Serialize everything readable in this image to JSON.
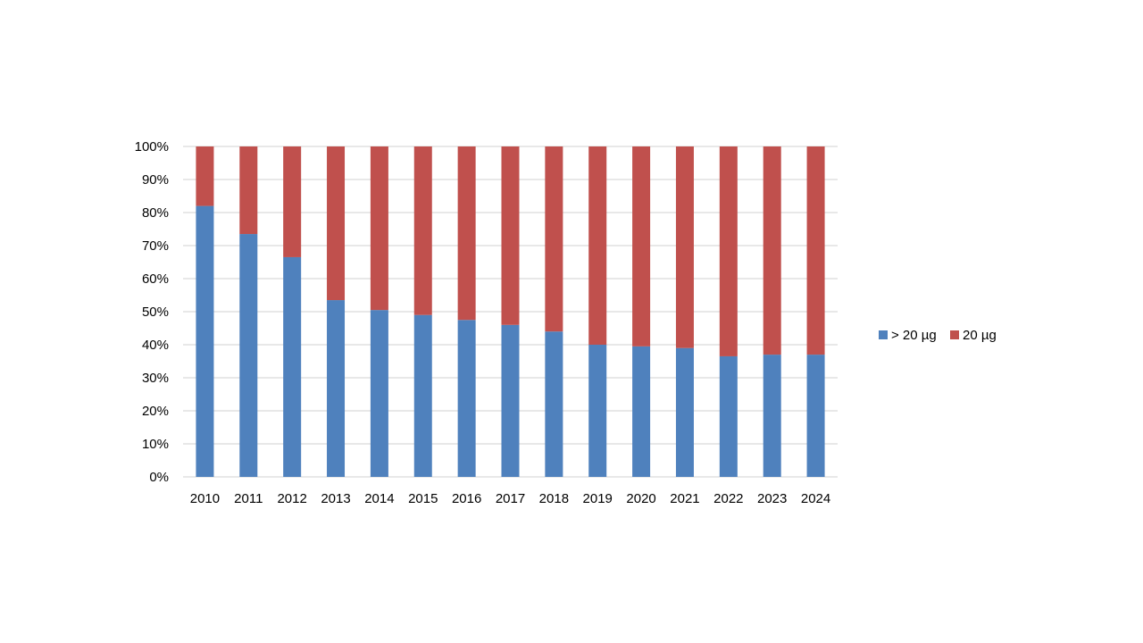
{
  "chart_data": {
    "type": "bar",
    "stacked": true,
    "normalized": true,
    "categories": [
      "2010",
      "2011",
      "2012",
      "2013",
      "2014",
      "2015",
      "2016",
      "2017",
      "2018",
      "2019",
      "2020",
      "2021",
      "2022",
      "2023",
      "2024"
    ],
    "series": [
      {
        "name": "> 20 µg",
        "color": "#4F81BD",
        "values": [
          82,
          73.5,
          66.5,
          53.5,
          50.5,
          49,
          47.5,
          46,
          44,
          40,
          39.5,
          39,
          36.5,
          37,
          37
        ]
      },
      {
        "name": "20 µg",
        "color": "#C0504D",
        "values": [
          18,
          26.5,
          33.5,
          46.5,
          49.5,
          51,
          52.5,
          54,
          56,
          60,
          60.5,
          61,
          63.5,
          63,
          63
        ]
      }
    ],
    "yticks": [
      "0%",
      "10%",
      "20%",
      "30%",
      "40%",
      "50%",
      "60%",
      "70%",
      "80%",
      "90%",
      "100%"
    ],
    "ylim": [
      0,
      100
    ],
    "grid": true,
    "grid_color": "#D9D9D9",
    "legend_position": "right",
    "title": "",
    "xlabel": "",
    "ylabel": ""
  }
}
